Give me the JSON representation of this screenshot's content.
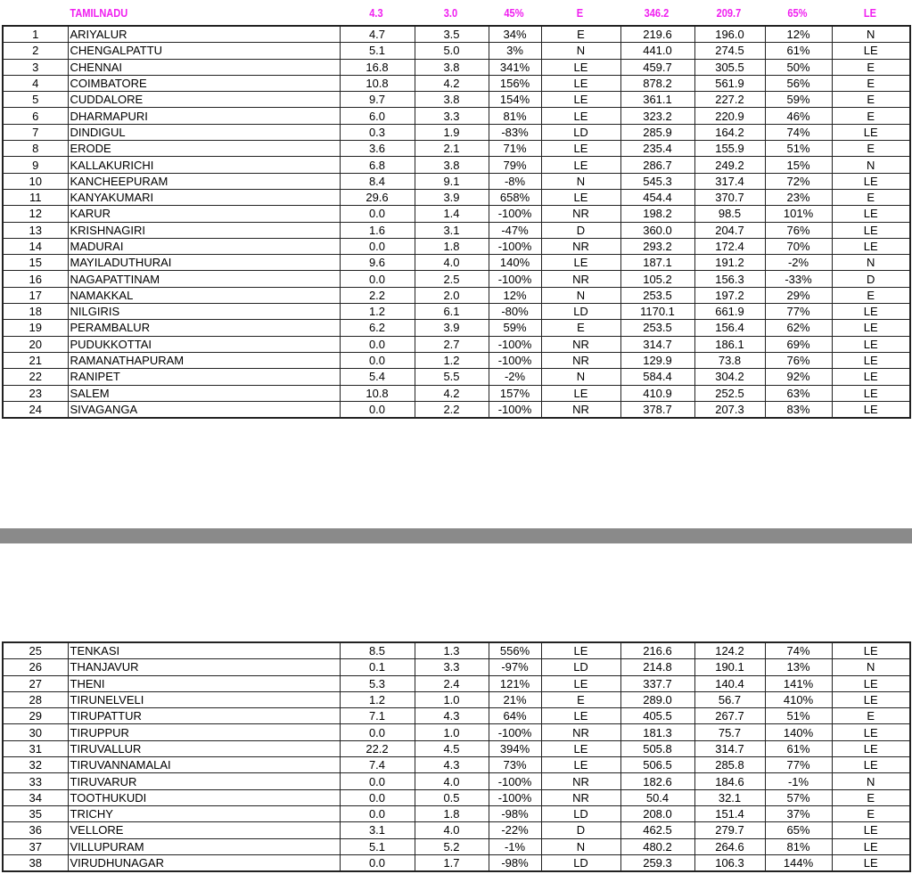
{
  "header": [
    "TAMILNADU",
    "4.3",
    "3.0",
    "45%",
    "E",
    "346.2",
    "209.7",
    "65%",
    "LE"
  ],
  "colors": {
    "header_text": "#f020f0",
    "divider_bar": "#8a8a8a"
  },
  "top_table": {
    "rows": [
      [
        "1",
        "ARIYALUR",
        "4.7",
        "3.5",
        "34%",
        "E",
        "219.6",
        "196.0",
        "12%",
        "N"
      ],
      [
        "2",
        "CHENGALPATTU",
        "5.1",
        "5.0",
        "3%",
        "N",
        "441.0",
        "274.5",
        "61%",
        "LE"
      ],
      [
        "3",
        "CHENNAI",
        "16.8",
        "3.8",
        "341%",
        "LE",
        "459.7",
        "305.5",
        "50%",
        "E"
      ],
      [
        "4",
        "COIMBATORE",
        "10.8",
        "4.2",
        "156%",
        "LE",
        "878.2",
        "561.9",
        "56%",
        "E"
      ],
      [
        "5",
        "CUDDALORE",
        "9.7",
        "3.8",
        "154%",
        "LE",
        "361.1",
        "227.2",
        "59%",
        "E"
      ],
      [
        "6",
        "DHARMAPURI",
        "6.0",
        "3.3",
        "81%",
        "LE",
        "323.2",
        "220.9",
        "46%",
        "E"
      ],
      [
        "7",
        "DINDIGUL",
        "0.3",
        "1.9",
        "-83%",
        "LD",
        "285.9",
        "164.2",
        "74%",
        "LE"
      ],
      [
        "8",
        "ERODE",
        "3.6",
        "2.1",
        "71%",
        "LE",
        "235.4",
        "155.9",
        "51%",
        "E"
      ],
      [
        "9",
        "KALLAKURICHI",
        "6.8",
        "3.8",
        "79%",
        "LE",
        "286.7",
        "249.2",
        "15%",
        "N"
      ],
      [
        "10",
        "KANCHEEPURAM",
        "8.4",
        "9.1",
        "-8%",
        "N",
        "545.3",
        "317.4",
        "72%",
        "LE"
      ],
      [
        "11",
        "KANYAKUMARI",
        "29.6",
        "3.9",
        "658%",
        "LE",
        "454.4",
        "370.7",
        "23%",
        "E"
      ],
      [
        "12",
        "KARUR",
        "0.0",
        "1.4",
        "-100%",
        "NR",
        "198.2",
        "98.5",
        "101%",
        "LE"
      ],
      [
        "13",
        "KRISHNAGIRI",
        "1.6",
        "3.1",
        "-47%",
        "D",
        "360.0",
        "204.7",
        "76%",
        "LE"
      ],
      [
        "14",
        "MADURAI",
        "0.0",
        "1.8",
        "-100%",
        "NR",
        "293.2",
        "172.4",
        "70%",
        "LE"
      ],
      [
        "15",
        "MAYILADUTHURAI",
        "9.6",
        "4.0",
        "140%",
        "LE",
        "187.1",
        "191.2",
        "-2%",
        "N"
      ],
      [
        "16",
        "NAGAPATTINAM",
        "0.0",
        "2.5",
        "-100%",
        "NR",
        "105.2",
        "156.3",
        "-33%",
        "D"
      ],
      [
        "17",
        "NAMAKKAL",
        "2.2",
        "2.0",
        "12%",
        "N",
        "253.5",
        "197.2",
        "29%",
        "E"
      ],
      [
        "18",
        "NILGIRIS",
        "1.2",
        "6.1",
        "-80%",
        "LD",
        "1170.1",
        "661.9",
        "77%",
        "LE"
      ],
      [
        "19",
        "PERAMBALUR",
        "6.2",
        "3.9",
        "59%",
        "E",
        "253.5",
        "156.4",
        "62%",
        "LE"
      ],
      [
        "20",
        "PUDUKKOTTAI",
        "0.0",
        "2.7",
        "-100%",
        "NR",
        "314.7",
        "186.1",
        "69%",
        "LE"
      ],
      [
        "21",
        "RAMANATHAPURAM",
        "0.0",
        "1.2",
        "-100%",
        "NR",
        "129.9",
        "73.8",
        "76%",
        "LE"
      ],
      [
        "22",
        "RANIPET",
        "5.4",
        "5.5",
        "-2%",
        "N",
        "584.4",
        "304.2",
        "92%",
        "LE"
      ],
      [
        "23",
        "SALEM",
        "10.8",
        "4.2",
        "157%",
        "LE",
        "410.9",
        "252.5",
        "63%",
        "LE"
      ],
      [
        "24",
        "SIVAGANGA",
        "0.0",
        "2.2",
        "-100%",
        "NR",
        "378.7",
        "207.3",
        "83%",
        "LE"
      ]
    ]
  },
  "bottom_table": {
    "rows": [
      [
        "25",
        "TENKASI",
        "8.5",
        "1.3",
        "556%",
        "LE",
        "216.6",
        "124.2",
        "74%",
        "LE"
      ],
      [
        "26",
        "THANJAVUR",
        "0.1",
        "3.3",
        "-97%",
        "LD",
        "214.8",
        "190.1",
        "13%",
        "N"
      ],
      [
        "27",
        "THENI",
        "5.3",
        "2.4",
        "121%",
        "LE",
        "337.7",
        "140.4",
        "141%",
        "LE"
      ],
      [
        "28",
        "TIRUNELVELI",
        "1.2",
        "1.0",
        "21%",
        "E",
        "289.0",
        "56.7",
        "410%",
        "LE"
      ],
      [
        "29",
        "TIRUPATTUR",
        "7.1",
        "4.3",
        "64%",
        "LE",
        "405.5",
        "267.7",
        "51%",
        "E"
      ],
      [
        "30",
        "TIRUPPUR",
        "0.0",
        "1.0",
        "-100%",
        "NR",
        "181.3",
        "75.7",
        "140%",
        "LE"
      ],
      [
        "31",
        "TIRUVALLUR",
        "22.2",
        "4.5",
        "394%",
        "LE",
        "505.8",
        "314.7",
        "61%",
        "LE"
      ],
      [
        "32",
        "TIRUVANNAMALAI",
        "7.4",
        "4.3",
        "73%",
        "LE",
        "506.5",
        "285.8",
        "77%",
        "LE"
      ],
      [
        "33",
        "TIRUVARUR",
        "0.0",
        "4.0",
        "-100%",
        "NR",
        "182.6",
        "184.6",
        "-1%",
        "N"
      ],
      [
        "34",
        "TOOTHUKUDI",
        "0.0",
        "0.5",
        "-100%",
        "NR",
        "50.4",
        "32.1",
        "57%",
        "E"
      ],
      [
        "35",
        "TRICHY",
        "0.0",
        "1.8",
        "-98%",
        "LD",
        "208.0",
        "151.4",
        "37%",
        "E"
      ],
      [
        "36",
        "VELLORE",
        "3.1",
        "4.0",
        "-22%",
        "D",
        "462.5",
        "279.7",
        "65%",
        "LE"
      ],
      [
        "37",
        "VILLUPURAM",
        "5.1",
        "5.2",
        "-1%",
        "N",
        "480.2",
        "264.6",
        "81%",
        "LE"
      ],
      [
        "38",
        "VIRUDHUNAGAR",
        "0.0",
        "1.7",
        "-98%",
        "LD",
        "259.3",
        "106.3",
        "144%",
        "LE"
      ]
    ]
  }
}
